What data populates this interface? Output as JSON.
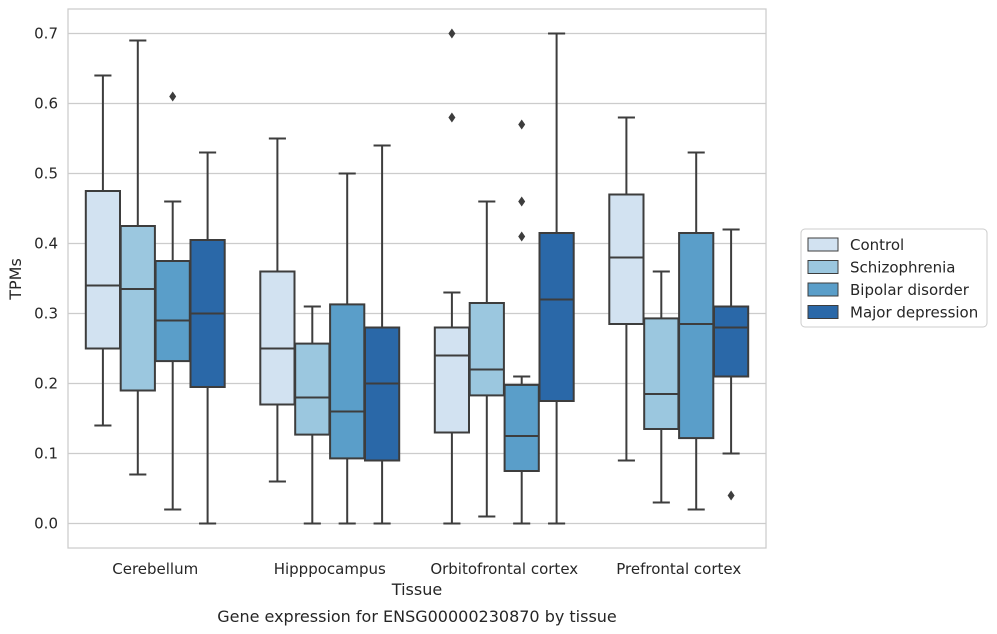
{
  "chart_data": {
    "type": "box",
    "title": "",
    "caption": "Gene expression for ENSG00000230870 by tissue",
    "xlabel": "Tissue",
    "ylabel": "TPMs",
    "ylim": [
      -0.035,
      0.735
    ],
    "yticks": [
      0.0,
      0.1,
      0.2,
      0.3,
      0.4,
      0.5,
      0.6,
      0.7
    ],
    "ytick_labels": [
      "0.0",
      "0.1",
      "0.2",
      "0.3",
      "0.4",
      "0.5",
      "0.6",
      "0.7"
    ],
    "grid": "horizontal",
    "legend_position": "right",
    "categories": [
      "Cerebellum",
      "Hipppocampus",
      "Orbitofrontal cortex",
      "Prefrontal cortex"
    ],
    "series": [
      {
        "name": "Control",
        "color": "#d2e2f1",
        "boxes": [
          {
            "whislo": 0.14,
            "q1": 0.25,
            "med": 0.34,
            "q3": 0.475,
            "whishi": 0.64,
            "fliers": []
          },
          {
            "whislo": 0.06,
            "q1": 0.17,
            "med": 0.25,
            "q3": 0.36,
            "whishi": 0.55,
            "fliers": []
          },
          {
            "whislo": 0.0,
            "q1": 0.13,
            "med": 0.24,
            "q3": 0.28,
            "whishi": 0.33,
            "fliers": [
              0.58,
              0.7
            ]
          },
          {
            "whislo": 0.09,
            "q1": 0.285,
            "med": 0.38,
            "q3": 0.47,
            "whishi": 0.58,
            "fliers": []
          }
        ]
      },
      {
        "name": "Schizophrenia",
        "color": "#9bc7df",
        "boxes": [
          {
            "whislo": 0.07,
            "q1": 0.19,
            "med": 0.335,
            "q3": 0.425,
            "whishi": 0.69,
            "fliers": []
          },
          {
            "whislo": 0.0,
            "q1": 0.127,
            "med": 0.18,
            "q3": 0.257,
            "whishi": 0.31,
            "fliers": []
          },
          {
            "whislo": 0.01,
            "q1": 0.183,
            "med": 0.22,
            "q3": 0.315,
            "whishi": 0.46,
            "fliers": []
          },
          {
            "whislo": 0.03,
            "q1": 0.135,
            "med": 0.185,
            "q3": 0.293,
            "whishi": 0.36,
            "fliers": []
          }
        ]
      },
      {
        "name": "Bipolar disorder",
        "color": "#5a9ec9",
        "boxes": [
          {
            "whislo": 0.02,
            "q1": 0.232,
            "med": 0.29,
            "q3": 0.375,
            "whishi": 0.46,
            "fliers": [
              0.61
            ]
          },
          {
            "whislo": 0.0,
            "q1": 0.093,
            "med": 0.16,
            "q3": 0.313,
            "whishi": 0.5,
            "fliers": []
          },
          {
            "whislo": 0.0,
            "q1": 0.075,
            "med": 0.125,
            "q3": 0.198,
            "whishi": 0.21,
            "fliers": [
              0.41,
              0.46,
              0.57
            ]
          },
          {
            "whislo": 0.02,
            "q1": 0.122,
            "med": 0.285,
            "q3": 0.415,
            "whishi": 0.53,
            "fliers": []
          }
        ]
      },
      {
        "name": "Major depression",
        "color": "#2a68a8",
        "boxes": [
          {
            "whislo": 0.0,
            "q1": 0.195,
            "med": 0.3,
            "q3": 0.405,
            "whishi": 0.53,
            "fliers": []
          },
          {
            "whislo": 0.0,
            "q1": 0.09,
            "med": 0.2,
            "q3": 0.28,
            "whishi": 0.54,
            "fliers": []
          },
          {
            "whislo": 0.0,
            "q1": 0.175,
            "med": 0.32,
            "q3": 0.415,
            "whishi": 0.7,
            "fliers": []
          },
          {
            "whislo": 0.1,
            "q1": 0.21,
            "med": 0.28,
            "q3": 0.31,
            "whishi": 0.42,
            "fliers": [
              0.04
            ]
          }
        ]
      }
    ]
  }
}
